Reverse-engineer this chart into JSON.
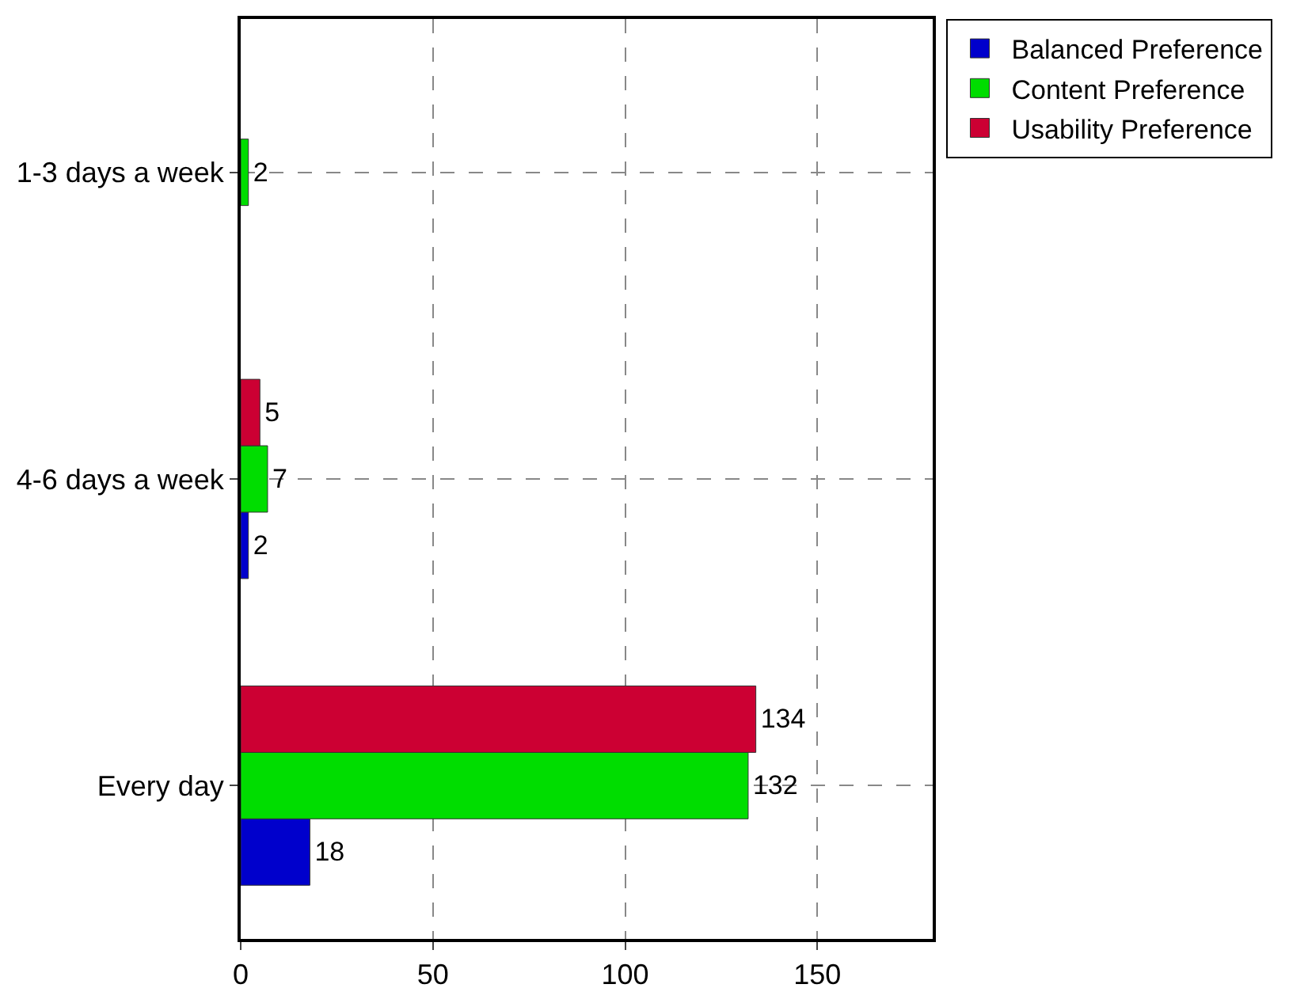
{
  "chart_data": {
    "type": "bar",
    "orientation": "horizontal",
    "categories": [
      "1-3 days a week",
      "4-6 days a week",
      "Every day"
    ],
    "series": [
      {
        "name": "Balanced Preference",
        "color": "#0000cc",
        "values": [
          null,
          2,
          18
        ]
      },
      {
        "name": "Content Preference",
        "color": "#00dd00",
        "values": [
          2,
          7,
          132
        ]
      },
      {
        "name": "Usability Preference",
        "color": "#cc0033",
        "values": [
          null,
          5,
          134
        ]
      }
    ],
    "xlim": [
      0,
      180
    ],
    "xticks": [
      0,
      50,
      100,
      150
    ],
    "grid": true,
    "legend": "top right",
    "data_labels": true
  }
}
